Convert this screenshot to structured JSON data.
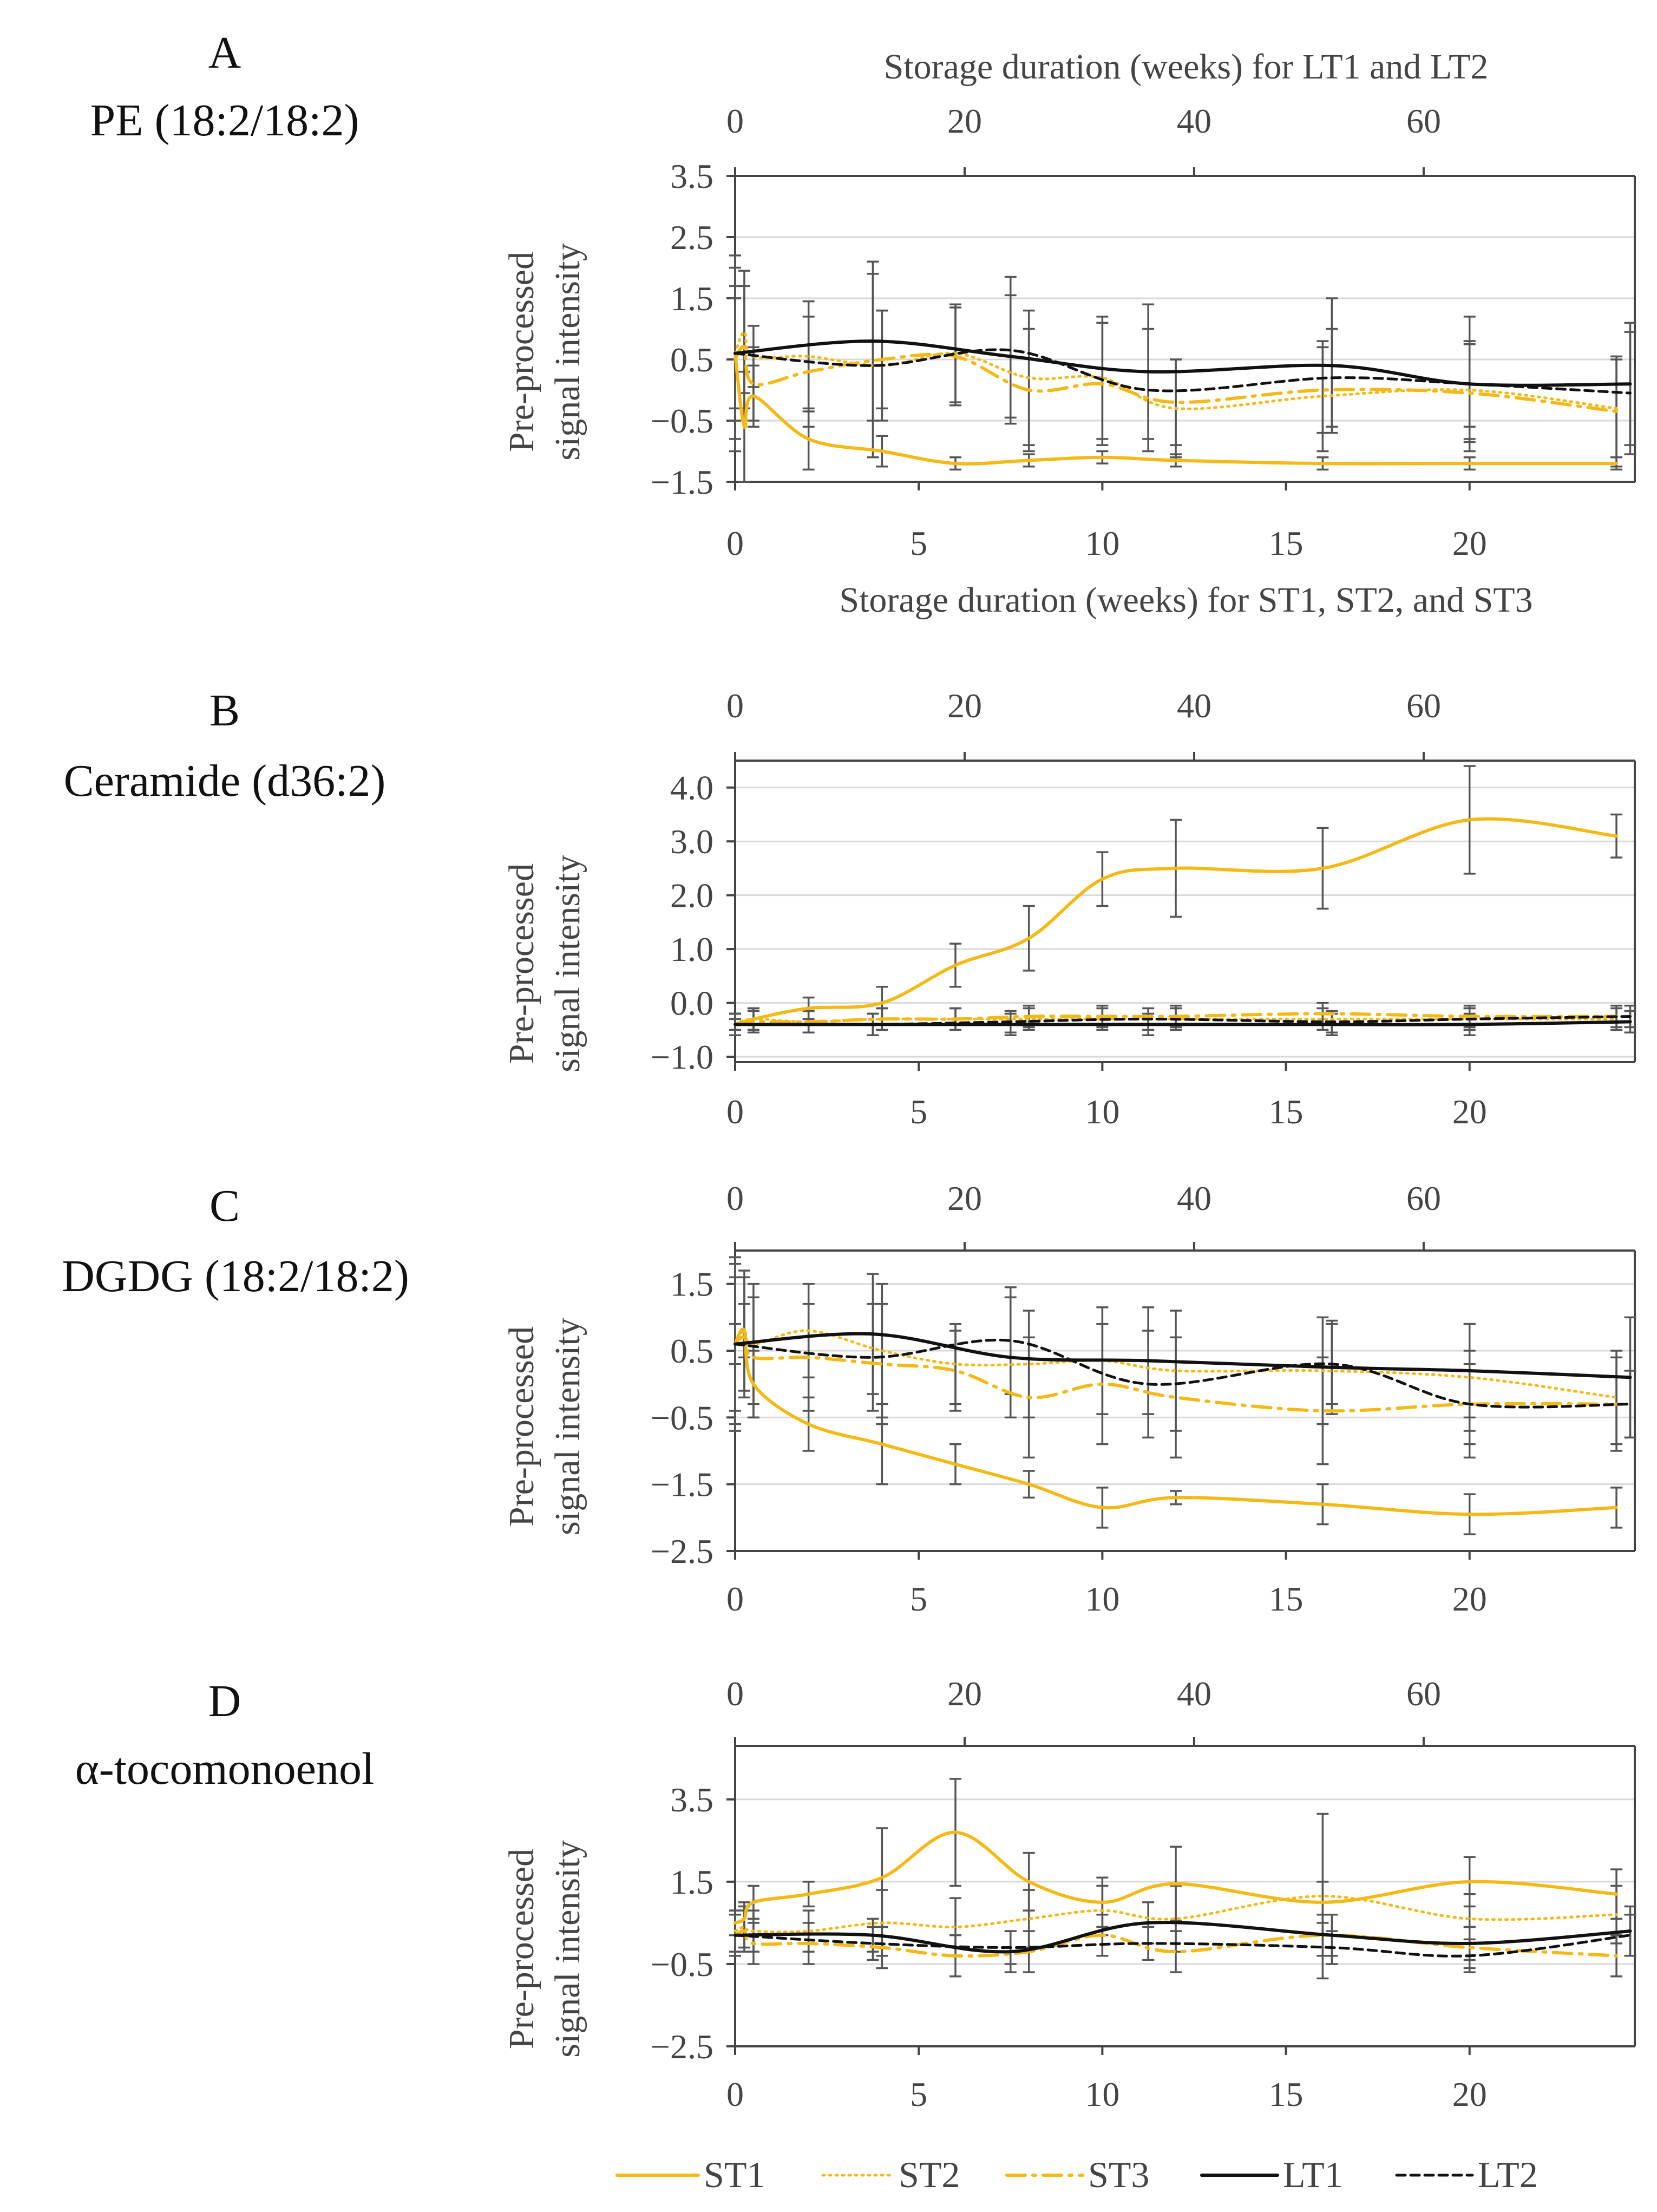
{
  "figure": {
    "domain": "lipid storage time-course"
  },
  "colors": {
    "st": "#F5B915",
    "lt": "#111111",
    "grid": "#d9d9d9",
    "axis": "#444444",
    "err": "#555555"
  },
  "top_axis_label": "Storage duration (weeks) for LT1 and LT2",
  "bottom_axis_label": "Storage duration (weeks) for ST1, ST2, and ST3",
  "y_axis_label_line1": "Pre-processed",
  "y_axis_label_line2": "signal intensity",
  "legend": [
    {
      "id": "ST1",
      "label": "ST1",
      "color": "#F5B915",
      "dash": "solid"
    },
    {
      "id": "ST2",
      "label": "ST2",
      "color": "#F5B915",
      "dash": "dotted"
    },
    {
      "id": "ST3",
      "label": "ST3",
      "color": "#F5B915",
      "dash": "dashdot"
    },
    {
      "id": "LT1",
      "label": "LT1",
      "color": "#111111",
      "dash": "solid"
    },
    {
      "id": "LT2",
      "label": "LT2",
      "color": "#111111",
      "dash": "dashed"
    }
  ],
  "chart_data": [
    {
      "type": "line",
      "panel": "A",
      "title": "PE (18:2/18:2)",
      "xlabel": "Storage duration (weeks) for ST1, ST2, and ST3",
      "x2label": "Storage duration (weeks) for LT1 and LT2",
      "ylabel": "Pre-processed signal intensity",
      "xlim": [
        0,
        24.5
      ],
      "x2lim": [
        0,
        78.4
      ],
      "ylim": [
        -1.5,
        3.5
      ],
      "yticks": [
        -1.5,
        -0.5,
        0.5,
        1.5,
        2.5,
        3.5
      ],
      "ytick_labels": [
        "−1.5",
        "−0.5",
        "0.5",
        "1.5",
        "2.5",
        "3.5"
      ],
      "xticks": [
        0,
        5,
        10,
        15,
        20
      ],
      "x2ticks": [
        0,
        20,
        40,
        60
      ],
      "series": [
        {
          "name": "ST1",
          "x": [
            0,
            0.25,
            0.5,
            2,
            4,
            6,
            8,
            10,
            12,
            16,
            20,
            24
          ],
          "y": [
            0.6,
            -0.6,
            -0.1,
            -0.8,
            -1.0,
            -1.2,
            -1.15,
            -1.1,
            -1.15,
            -1.2,
            -1.2,
            -1.2
          ],
          "err": [
            0.9,
            0.9,
            0.5,
            0.5,
            0.25,
            0.1,
            0.1,
            0.1,
            0.1,
            0.1,
            0.1,
            0.1
          ]
        },
        {
          "name": "ST2",
          "x": [
            0,
            0.25,
            0.5,
            2,
            4,
            6,
            8,
            10,
            12,
            16,
            20,
            24
          ],
          "y": [
            0.6,
            0.95,
            0.55,
            0.55,
            0.4,
            0.6,
            0.2,
            0.2,
            -0.3,
            -0.1,
            0.0,
            -0.3
          ],
          "err": [
            1.1,
            1.0,
            0.5,
            0.9,
            0.9,
            0.8,
            1.1,
            1.0,
            0.8,
            0.9,
            0.8,
            0.8
          ]
        },
        {
          "name": "ST3",
          "x": [
            0,
            0.25,
            0.5,
            2,
            4,
            6,
            8,
            10,
            12,
            16,
            20,
            24
          ],
          "y": [
            0.5,
            0.7,
            0.1,
            0.3,
            0.5,
            0.55,
            0.0,
            0.1,
            -0.2,
            0.0,
            -0.05,
            -0.35
          ],
          "err": [
            1.0,
            1.0,
            0.6,
            0.9,
            0.8,
            0.8,
            1.0,
            1.0,
            0.7,
            0.7,
            0.8,
            0.9
          ]
        },
        {
          "name": "LT1",
          "x": [
            0,
            12,
            24,
            36,
            52,
            64,
            78
          ],
          "y": [
            0.6,
            0.8,
            0.55,
            0.3,
            0.4,
            0.1,
            0.1
          ],
          "err": [
            1.6,
            1.3,
            1.0,
            1.1,
            1.1,
            1.1,
            1.0
          ]
        },
        {
          "name": "LT2",
          "x": [
            0,
            12,
            24,
            36,
            52,
            64,
            78
          ],
          "y": [
            0.6,
            0.4,
            0.65,
            0.0,
            0.2,
            0.1,
            -0.05
          ],
          "err": [
            1.4,
            1.5,
            1.2,
            1.0,
            0.8,
            0.7,
            1.0
          ]
        }
      ]
    },
    {
      "type": "line",
      "panel": "B",
      "title": "Ceramide (d36:2)",
      "xlabel": "",
      "x2label": "",
      "ylabel": "Pre-processed signal intensity",
      "xlim": [
        0,
        24.5
      ],
      "x2lim": [
        0,
        78.4
      ],
      "ylim": [
        -1.1,
        4.5
      ],
      "yticks": [
        -1.0,
        0.0,
        1.0,
        2.0,
        3.0,
        4.0
      ],
      "ytick_labels": [
        "−1.0",
        "0.0",
        "1.0",
        "2.0",
        "3.0",
        "4.0"
      ],
      "xticks": [
        0,
        5,
        10,
        15,
        20
      ],
      "x2ticks": [
        0,
        20,
        40,
        60
      ],
      "series": [
        {
          "name": "ST1",
          "x": [
            0,
            0.5,
            2,
            4,
            6,
            8,
            10,
            12,
            16,
            20,
            24
          ],
          "y": [
            -0.4,
            -0.3,
            -0.1,
            0.0,
            0.7,
            1.2,
            2.3,
            2.5,
            2.5,
            3.4,
            3.1
          ],
          "err": [
            0.1,
            0.2,
            0.2,
            0.3,
            0.4,
            0.6,
            0.5,
            0.9,
            0.75,
            1.0,
            0.4
          ]
        },
        {
          "name": "ST2",
          "x": [
            0,
            0.5,
            2,
            4,
            6,
            8,
            10,
            12,
            16,
            20,
            24
          ],
          "y": [
            -0.4,
            -0.3,
            -0.35,
            -0.3,
            -0.3,
            -0.3,
            -0.3,
            -0.3,
            -0.3,
            -0.3,
            -0.3
          ],
          "err": [
            0.2,
            0.2,
            0.2,
            0.2,
            0.2,
            0.2,
            0.2,
            0.2,
            0.2,
            0.2,
            0.2
          ]
        },
        {
          "name": "ST3",
          "x": [
            0,
            0.5,
            2,
            4,
            6,
            8,
            10,
            12,
            16,
            20,
            24
          ],
          "y": [
            -0.4,
            -0.35,
            -0.35,
            -0.3,
            -0.3,
            -0.25,
            -0.25,
            -0.25,
            -0.2,
            -0.25,
            -0.25
          ],
          "err": [
            0.2,
            0.2,
            0.2,
            0.2,
            0.2,
            0.2,
            0.2,
            0.2,
            0.2,
            0.2,
            0.2
          ]
        },
        {
          "name": "LT1",
          "x": [
            0,
            12,
            24,
            36,
            52,
            64,
            78
          ],
          "y": [
            -0.4,
            -0.4,
            -0.4,
            -0.4,
            -0.4,
            -0.4,
            -0.35
          ],
          "err": [
            0.2,
            0.2,
            0.2,
            0.2,
            0.2,
            0.2,
            0.2
          ]
        },
        {
          "name": "LT2",
          "x": [
            0,
            12,
            24,
            36,
            52,
            64,
            78
          ],
          "y": [
            -0.4,
            -0.4,
            -0.35,
            -0.3,
            -0.35,
            -0.3,
            -0.25
          ],
          "err": [
            0.2,
            0.2,
            0.2,
            0.2,
            0.2,
            0.2,
            0.2
          ]
        }
      ]
    },
    {
      "type": "line",
      "panel": "C",
      "title": "DGDG (18:2/18:2)",
      "xlabel": "",
      "x2label": "",
      "ylabel": "Pre-processed signal intensity",
      "xlim": [
        0,
        24.5
      ],
      "x2lim": [
        0,
        78.4
      ],
      "ylim": [
        -2.5,
        2.0
      ],
      "yticks": [
        -2.5,
        -1.5,
        -0.5,
        0.5,
        1.5
      ],
      "ytick_labels": [
        "−2.5",
        "−1.5",
        "−0.5",
        "0.5",
        "1.5"
      ],
      "xticks": [
        0,
        5,
        10,
        15,
        20
      ],
      "x2ticks": [
        0,
        20,
        40,
        60
      ],
      "series": [
        {
          "name": "ST1",
          "x": [
            0,
            0.25,
            0.5,
            2,
            4,
            6,
            8,
            10,
            12,
            16,
            20,
            24
          ],
          "y": [
            0.6,
            0.8,
            0.0,
            -0.6,
            -0.9,
            -1.2,
            -1.5,
            -1.85,
            -1.7,
            -1.8,
            -1.95,
            -1.85
          ],
          "err": [
            0.3,
            0.4,
            0.5,
            0.4,
            0.6,
            0.3,
            0.2,
            0.3,
            0.1,
            0.3,
            0.3,
            0.3
          ]
        },
        {
          "name": "ST2",
          "x": [
            0,
            0.25,
            0.5,
            2,
            4,
            6,
            8,
            10,
            12,
            16,
            20,
            24
          ],
          "y": [
            0.6,
            0.8,
            0.6,
            0.8,
            0.5,
            0.3,
            0.3,
            0.35,
            0.2,
            0.2,
            0.1,
            -0.2
          ],
          "err": [
            1.2,
            0.9,
            0.9,
            0.7,
            1.0,
            0.6,
            0.8,
            0.8,
            0.9,
            0.8,
            0.8,
            0.7
          ]
        },
        {
          "name": "ST3",
          "x": [
            0,
            0.25,
            0.5,
            2,
            4,
            6,
            8,
            10,
            12,
            16,
            20,
            24
          ],
          "y": [
            0.6,
            0.7,
            0.4,
            0.4,
            0.3,
            0.2,
            -0.2,
            0.0,
            -0.2,
            -0.4,
            -0.3,
            -0.3
          ],
          "err": [
            1.0,
            0.9,
            0.9,
            0.8,
            0.9,
            0.6,
            0.9,
            0.9,
            0.9,
            0.8,
            0.8,
            0.7
          ]
        },
        {
          "name": "LT1",
          "x": [
            0,
            12,
            24,
            36,
            52,
            64,
            78
          ],
          "y": [
            0.6,
            0.75,
            0.4,
            0.35,
            0.25,
            0.2,
            0.1
          ],
          "err": [
            1.3,
            0.9,
            0.9,
            0.8,
            0.7,
            0.7,
            0.9
          ]
        },
        {
          "name": "LT2",
          "x": [
            0,
            12,
            24,
            36,
            52,
            64,
            78
          ],
          "y": [
            0.6,
            0.4,
            0.65,
            0.0,
            0.3,
            -0.3,
            -0.3
          ],
          "err": [
            1.3,
            0.8,
            0.8,
            0.8,
            0.6,
            0.6,
            0.5
          ]
        }
      ]
    },
    {
      "type": "line",
      "panel": "D",
      "title": "α-tocomonoenol",
      "xlabel": "",
      "x2label": "",
      "ylabel": "Pre-processed signal intensity",
      "xlim": [
        0,
        24.5
      ],
      "x2lim": [
        0,
        78.4
      ],
      "ylim": [
        -2.5,
        4.8
      ],
      "yticks": [
        -2.5,
        -0.5,
        1.5,
        3.5
      ],
      "ytick_labels": [
        "−2.5",
        "−0.5",
        "1.5",
        "3.5"
      ],
      "xticks": [
        0,
        5,
        10,
        15,
        20
      ],
      "x2ticks": [
        0,
        20,
        40,
        60
      ],
      "series": [
        {
          "name": "ST1",
          "x": [
            0,
            0.25,
            0.5,
            2,
            4,
            6,
            8,
            10,
            12,
            16,
            20,
            24
          ],
          "y": [
            0.5,
            0.6,
            1.0,
            1.2,
            1.6,
            2.7,
            1.5,
            1.0,
            1.45,
            1.0,
            1.5,
            1.2
          ],
          "err": [
            0.3,
            0.4,
            0.4,
            0.3,
            1.2,
            1.3,
            0.7,
            0.6,
            0.9,
            0.5,
            0.6,
            0.6
          ]
        },
        {
          "name": "ST2",
          "x": [
            0,
            0.25,
            0.5,
            2,
            4,
            6,
            8,
            10,
            12,
            16,
            20,
            24
          ],
          "y": [
            0.3,
            0.4,
            0.3,
            0.3,
            0.5,
            0.4,
            0.6,
            0.8,
            0.6,
            1.15,
            0.6,
            0.7
          ],
          "err": [
            0.5,
            0.5,
            0.5,
            0.5,
            0.8,
            0.7,
            0.7,
            0.6,
            0.8,
            2.0,
            0.6,
            0.7
          ]
        },
        {
          "name": "ST3",
          "x": [
            0,
            0.25,
            0.5,
            2,
            4,
            6,
            8,
            10,
            12,
            16,
            20,
            24
          ],
          "y": [
            0.2,
            0.3,
            0.0,
            0.0,
            -0.1,
            -0.3,
            -0.2,
            0.2,
            -0.2,
            0.2,
            -0.1,
            -0.3
          ],
          "err": [
            0.5,
            0.5,
            0.5,
            0.5,
            0.5,
            0.5,
            0.5,
            0.5,
            0.5,
            0.5,
            0.5,
            0.5
          ]
        },
        {
          "name": "LT1",
          "x": [
            0,
            12,
            24,
            36,
            52,
            64,
            78
          ],
          "y": [
            0.2,
            0.2,
            -0.2,
            0.5,
            0.2,
            0.0,
            0.3
          ],
          "err": [
            0.5,
            0.4,
            0.5,
            0.5,
            0.5,
            0.4,
            0.6
          ]
        },
        {
          "name": "LT2",
          "x": [
            0,
            12,
            24,
            36,
            52,
            64,
            78
          ],
          "y": [
            0.2,
            0.0,
            -0.1,
            0.0,
            -0.1,
            -0.3,
            0.2
          ],
          "err": [
            0.5,
            0.4,
            0.4,
            0.4,
            0.4,
            0.4,
            0.5
          ]
        }
      ]
    }
  ]
}
